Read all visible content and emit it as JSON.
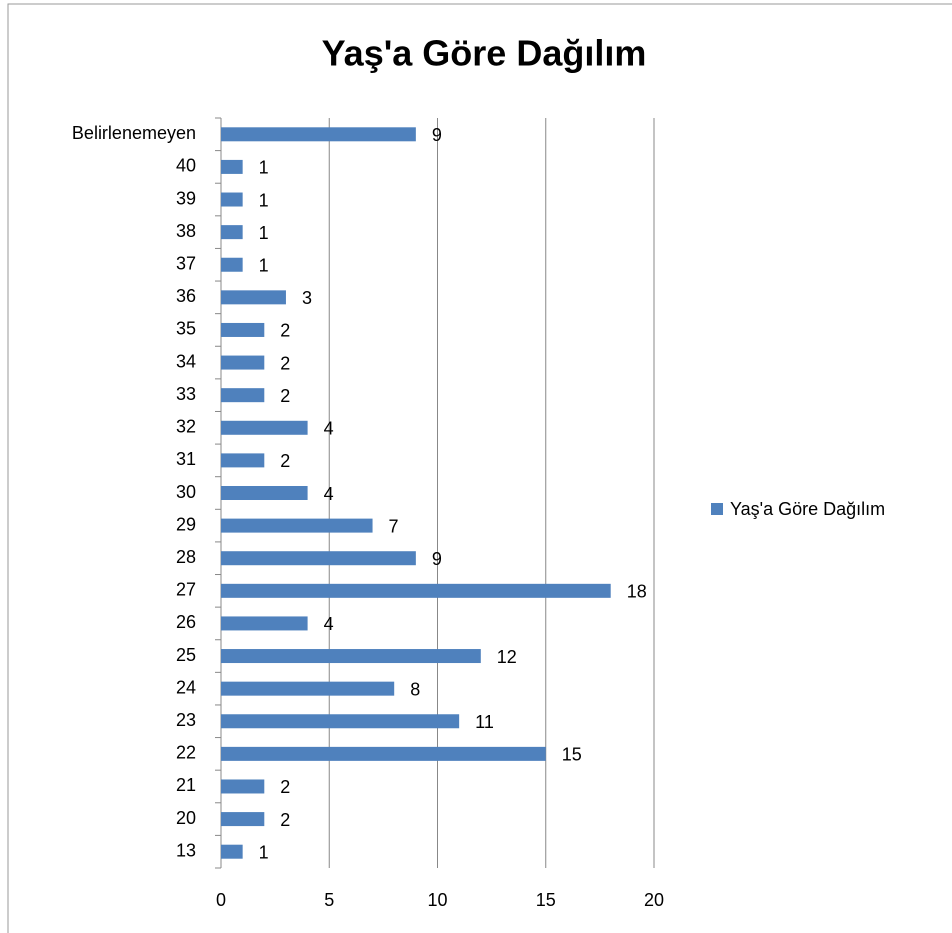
{
  "chart_data": {
    "type": "bar",
    "orientation": "horizontal",
    "title": "Yaş'a Göre Dağılım",
    "categories": [
      "13",
      "20",
      "21",
      "22",
      "23",
      "24",
      "25",
      "26",
      "27",
      "28",
      "29",
      "30",
      "31",
      "32",
      "33",
      "34",
      "35",
      "36",
      "37",
      "38",
      "39",
      "40",
      "Belirlenemeyen"
    ],
    "series": [
      {
        "name": "Yaş'a Göre Dağılım",
        "color": "#4f81bd",
        "values": [
          1,
          2,
          2,
          15,
          11,
          8,
          12,
          4,
          18,
          9,
          7,
          4,
          2,
          4,
          2,
          2,
          2,
          3,
          1,
          1,
          1,
          1,
          9
        ]
      }
    ],
    "xlim": [
      0,
      20
    ],
    "xticks": [
      0,
      5,
      10,
      15,
      20
    ],
    "grid": true,
    "legend": "right"
  }
}
